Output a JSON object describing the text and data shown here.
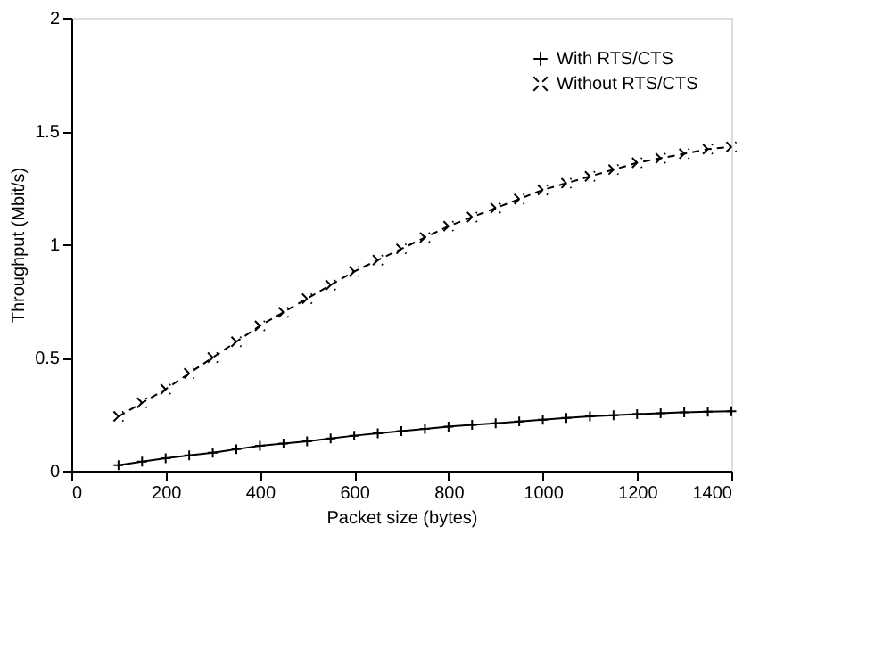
{
  "chart_data": {
    "type": "line",
    "xlabel": "Packet size (bytes)",
    "ylabel": "Throughput (Mbit/s)",
    "x": [
      100,
      150,
      200,
      250,
      300,
      350,
      400,
      450,
      500,
      550,
      600,
      650,
      700,
      750,
      800,
      850,
      900,
      950,
      1000,
      1050,
      1100,
      1150,
      1200,
      1250,
      1300,
      1350,
      1400
    ],
    "series": [
      {
        "name": "With RTS/CTS",
        "color": "#000000",
        "marker": "plus",
        "line_style": "solid",
        "values": [
          0.025,
          0.04,
          0.055,
          0.068,
          0.08,
          0.095,
          0.11,
          0.12,
          0.13,
          0.143,
          0.155,
          0.165,
          0.175,
          0.185,
          0.195,
          0.203,
          0.21,
          0.218,
          0.225,
          0.233,
          0.24,
          0.245,
          0.25,
          0.254,
          0.258,
          0.261,
          0.263
        ]
      },
      {
        "name": "Without RTS/CTS",
        "color": "#000000",
        "marker": "cross",
        "line_style": "dashed",
        "values": [
          0.24,
          0.3,
          0.36,
          0.43,
          0.5,
          0.57,
          0.64,
          0.7,
          0.76,
          0.82,
          0.88,
          0.93,
          0.98,
          1.03,
          1.08,
          1.12,
          1.16,
          1.2,
          1.24,
          1.27,
          1.3,
          1.33,
          1.36,
          1.38,
          1.4,
          1.42,
          1.43
        ]
      }
    ],
    "xlim": [
      0,
      1400
    ],
    "xticks": [
      0,
      200,
      400,
      600,
      800,
      1000,
      1200,
      1400
    ],
    "ylim": [
      0,
      2
    ],
    "yticks": [
      0,
      0.5,
      1,
      1.5,
      2
    ],
    "grid": false,
    "legend": "top right"
  }
}
